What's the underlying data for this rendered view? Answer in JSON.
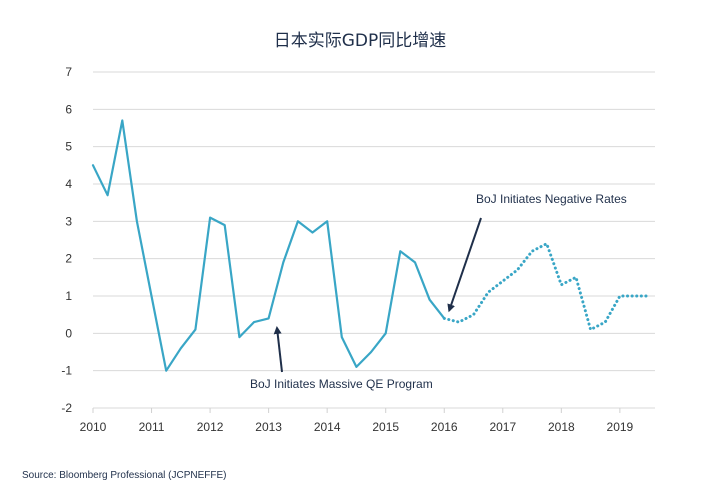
{
  "chart_data": {
    "type": "line",
    "title": "日本实际GDP同比增速",
    "xlabel": "",
    "ylabel": "",
    "xlim": [
      2010,
      2019.6
    ],
    "ylim": [
      -2,
      7
    ],
    "x_ticks": [
      2010,
      2011,
      2012,
      2013,
      2014,
      2015,
      2016,
      2017,
      2018,
      2019
    ],
    "y_ticks": [
      -2,
      -1,
      0,
      1,
      2,
      3,
      4,
      5,
      6,
      7
    ],
    "grid": true,
    "series": [
      {
        "style": "solid",
        "color": "#39a6c6",
        "x": [
          2010.0,
          2010.25,
          2010.5,
          2010.75,
          2011.0,
          2011.25,
          2011.5,
          2011.75,
          2012.0,
          2012.25,
          2012.5,
          2012.75,
          2013.0,
          2013.25,
          2013.5,
          2013.75,
          2014.0,
          2014.25,
          2014.5,
          2014.75,
          2015.0,
          2015.25,
          2015.5,
          2015.75,
          2016.0
        ],
        "values": [
          4.5,
          3.7,
          5.7,
          3.0,
          1.0,
          -1.0,
          -0.4,
          0.1,
          3.1,
          2.9,
          -0.1,
          0.3,
          0.4,
          1.9,
          3.0,
          2.7,
          3.0,
          -0.1,
          -0.9,
          -0.5,
          0.0,
          2.2,
          1.9,
          0.9,
          0.4
        ]
      },
      {
        "style": "dotted",
        "color": "#39a6c6",
        "x": [
          2016.0,
          2016.25,
          2016.5,
          2016.75,
          2017.0,
          2017.25,
          2017.5,
          2017.75,
          2018.0,
          2018.25,
          2018.5,
          2018.75,
          2019.0,
          2019.25,
          2019.5
        ],
        "values": [
          0.4,
          0.3,
          0.5,
          1.1,
          1.4,
          1.7,
          2.2,
          2.4,
          1.3,
          1.5,
          0.1,
          0.3,
          1.0,
          1.0,
          1.0
        ]
      }
    ],
    "annotations": [
      {
        "text": "BoJ Initiates Negative Rates",
        "x": 2016.0,
        "y": 0.4
      },
      {
        "text": "BoJ Initiates Massive QE Program",
        "x": 2013.1,
        "y": 0.2
      }
    ],
    "source": "Source: Bloomberg Professional (JCPNEFFE)"
  }
}
